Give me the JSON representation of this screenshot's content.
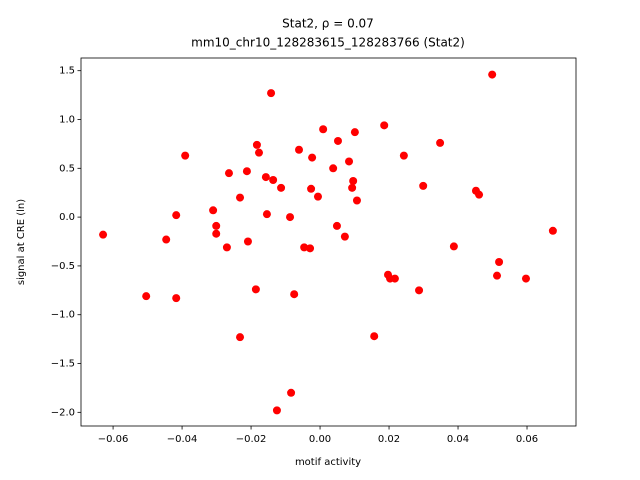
{
  "chart_data": {
    "type": "scatter",
    "title": "Stat2, ρ = 0.07",
    "subtitle": "mm10_chr10_128283615_128283766 (Stat2)",
    "x_label": "motif activity",
    "y_label": "signal at CRE (ln)",
    "color": "#ff0000",
    "xlim": [
      -0.0693,
      0.0742
    ],
    "ylim": [
      -2.14,
      1.63
    ],
    "xticks": [
      {
        "value": -0.06,
        "label": "−0.06"
      },
      {
        "value": -0.04,
        "label": "−0.04"
      },
      {
        "value": -0.02,
        "label": "−0.02"
      },
      {
        "value": 0,
        "label": "0.00"
      },
      {
        "value": 0.02,
        "label": "0.02"
      },
      {
        "value": 0.04,
        "label": "0.04"
      },
      {
        "value": 0.06,
        "label": "0.06"
      }
    ],
    "yticks": [
      {
        "value": -2,
        "label": "−2.0"
      },
      {
        "value": -1.5,
        "label": "−1.5"
      },
      {
        "value": -1,
        "label": "−1.0"
      },
      {
        "value": -0.5,
        "label": "−0.5"
      },
      {
        "value": 0,
        "label": "0.0"
      },
      0.5,
      {
        "value": 1,
        "label": "1.0"
      },
      1.5
    ],
    "x": [
      -0.0629,
      -0.0504,
      -0.0446,
      -0.0417,
      -0.0417,
      -0.0391,
      -0.031,
      -0.0301,
      -0.0301,
      -0.027,
      -0.0264,
      -0.0232,
      -0.0232,
      -0.0212,
      -0.0209,
      -0.0186,
      -0.0183,
      -0.0177,
      -0.0157,
      -0.0154,
      -0.0142,
      -0.0136,
      -0.0125,
      -0.0113,
      -0.0087,
      -0.0084,
      -0.0075,
      -0.0061,
      -0.0046,
      -0.0029,
      -0.0026,
      -0.0023,
      -0.0006,
      0.0009,
      0.0038,
      0.0049,
      0.0052,
      0.0072,
      0.0084,
      0.0093,
      0.0096,
      0.0101,
      0.0107,
      0.0157,
      0.0186,
      0.0197,
      0.0203,
      0.0217,
      0.0243,
      0.0287,
      0.0299,
      0.0348,
      0.0388,
      0.0452,
      0.0461,
      0.0499,
      0.0513,
      0.0519,
      0.0597,
      0.0675
    ],
    "values": [
      -0.18,
      -0.81,
      -0.23,
      0.02,
      -0.83,
      0.63,
      0.07,
      -0.09,
      -0.17,
      -0.31,
      0.45,
      0.2,
      -1.23,
      0.47,
      -0.25,
      -0.74,
      0.74,
      0.66,
      0.41,
      0.03,
      1.27,
      0.38,
      -1.98,
      0.3,
      0.0,
      -1.8,
      -0.79,
      0.69,
      -0.31,
      -0.32,
      0.29,
      0.61,
      0.21,
      0.9,
      0.5,
      -0.09,
      0.78,
      -0.2,
      0.57,
      0.3,
      0.37,
      0.87,
      0.17,
      -1.22,
      0.94,
      -0.59,
      -0.63,
      -0.63,
      0.63,
      -0.75,
      0.32,
      0.76,
      -0.3,
      0.27,
      0.23,
      1.46,
      -0.6,
      -0.46,
      -0.63,
      -0.14
    ]
  }
}
